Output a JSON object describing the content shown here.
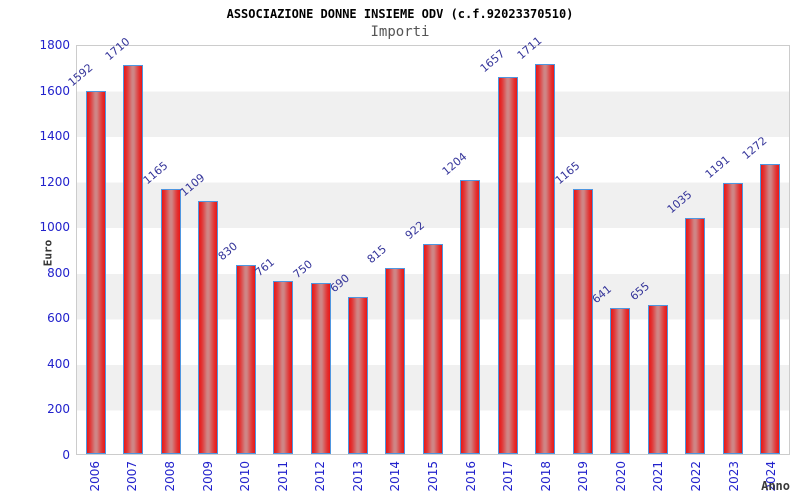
{
  "header": {
    "title": "ASSOCIAZIONE DONNE INSIEME ODV (c.f.92023370510)",
    "subtitle": "Importi"
  },
  "chart_data": {
    "type": "bar",
    "title": "ASSOCIAZIONE DONNE INSIEME ODV (c.f.92023370510)",
    "subtitle": "Importi",
    "xlabel": "Anno",
    "ylabel": "Euro",
    "categories": [
      "2006",
      "2007",
      "2008",
      "2009",
      "2010",
      "2011",
      "2012",
      "2013",
      "2014",
      "2015",
      "2016",
      "2017",
      "2018",
      "2019",
      "2020",
      "2021",
      "2022",
      "2023",
      "2024"
    ],
    "values": [
      1592,
      1710,
      1165,
      1109,
      830,
      761,
      750,
      690,
      815,
      922,
      1204,
      1657,
      1711,
      1165,
      641,
      655,
      1035,
      1191,
      1272
    ],
    "ylim": [
      0,
      1800
    ],
    "yticks": [
      0,
      200,
      400,
      600,
      800,
      1000,
      1200,
      1400,
      1600,
      1800
    ],
    "grid": "alternating-horizontal-bands",
    "legend": "none",
    "colors": {
      "tick_label": "#2222cc",
      "value_label": "#333399",
      "bar_fill_edge": "#e81818",
      "bar_fill_center": "#cf8585",
      "bar_border": "#4e96e0",
      "band_gray": "#f0f0f0",
      "plot_border": "#cccccc",
      "title": "#000000",
      "subtitle": "#555555",
      "axis_title": "#333333"
    }
  }
}
